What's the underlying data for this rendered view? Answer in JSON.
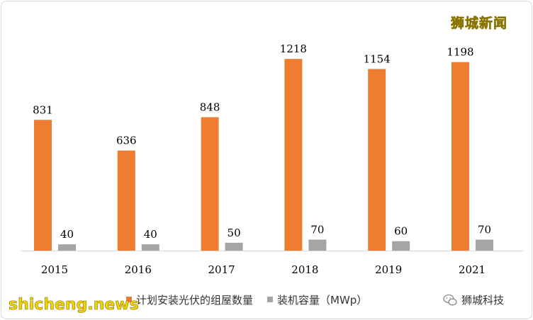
{
  "chart_data": {
    "type": "bar",
    "categories": [
      "2015",
      "2016",
      "2017",
      "2018",
      "2019",
      "2021"
    ],
    "series": [
      {
        "name": "计划安装光伏的组屋数量",
        "values": [
          831,
          636,
          848,
          1218,
          1154,
          1198
        ],
        "color": "#ed7d31"
      },
      {
        "name": "装机容量（MWp）",
        "values": [
          40,
          40,
          50,
          70,
          60,
          70
        ],
        "color": "#a5a5a5"
      }
    ],
    "title": "",
    "xlabel": "",
    "ylabel": "",
    "ylim": [
      0,
      1300
    ],
    "grid": false,
    "legend": "bottom"
  },
  "watermark": "狮城新闻",
  "site": "shicheng.news",
  "brand": "狮城科技"
}
